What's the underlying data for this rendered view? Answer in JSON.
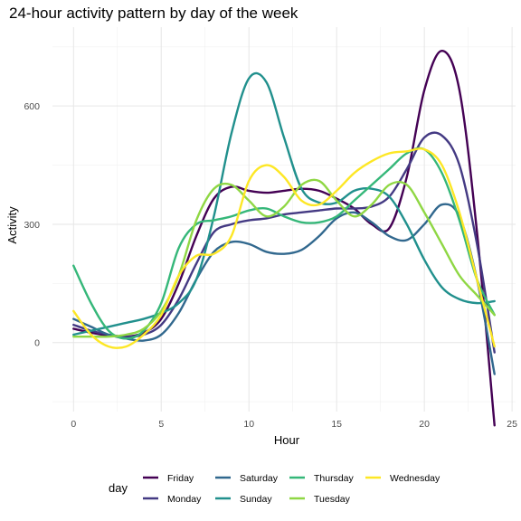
{
  "chart_data": {
    "type": "line",
    "title": "24-hour activity pattern by day of the week",
    "xlabel": "Hour",
    "ylabel": "Activity",
    "xlim": [
      -1.2,
      25.2
    ],
    "ylim": [
      -175,
      800
    ],
    "x_ticks": [
      0,
      5,
      10,
      15,
      20,
      25
    ],
    "x_tick_labels": [
      "0",
      "5",
      "10",
      "15",
      "20",
      "25"
    ],
    "y_ticks": [
      0,
      300,
      600
    ],
    "y_tick_labels": [
      "0",
      "300",
      "600"
    ],
    "grid": true,
    "legend": {
      "title": "day",
      "position": "bottom"
    },
    "x": [
      0,
      1,
      2,
      3,
      4,
      5,
      6,
      7,
      8,
      9,
      10,
      11,
      12,
      13,
      14,
      15,
      16,
      17,
      18,
      19,
      20,
      21,
      22,
      23,
      24
    ],
    "series": [
      {
        "name": "Friday",
        "color": "#440154",
        "values": [
          35,
          25,
          18,
          15,
          25,
          60,
          150,
          270,
          365,
          395,
          385,
          380,
          385,
          390,
          385,
          365,
          340,
          300,
          290,
          420,
          640,
          740,
          640,
          280,
          -210
        ]
      },
      {
        "name": "Monday",
        "color": "#443a83",
        "values": [
          45,
          30,
          20,
          15,
          20,
          45,
          110,
          200,
          280,
          300,
          310,
          315,
          325,
          330,
          335,
          340,
          340,
          345,
          370,
          440,
          520,
          525,
          450,
          250,
          -25
        ]
      },
      {
        "name": "Saturday",
        "color": "#31688e",
        "values": [
          60,
          40,
          20,
          10,
          5,
          20,
          75,
          160,
          230,
          255,
          250,
          230,
          225,
          235,
          270,
          315,
          330,
          305,
          270,
          260,
          300,
          350,
          320,
          160,
          -80
        ]
      },
      {
        "name": "Sunday",
        "color": "#21908d",
        "values": [
          20,
          30,
          40,
          50,
          60,
          75,
          100,
          160,
          320,
          530,
          670,
          660,
          520,
          390,
          355,
          355,
          385,
          390,
          370,
          300,
          210,
          140,
          110,
          100,
          105
        ]
      },
      {
        "name": "Thursday",
        "color": "#35b779",
        "values": [
          195,
          100,
          30,
          10,
          30,
          100,
          240,
          300,
          310,
          320,
          335,
          340,
          320,
          305,
          305,
          320,
          360,
          400,
          440,
          480,
          490,
          430,
          310,
          160,
          70
        ]
      },
      {
        "name": "Tuesday",
        "color": "#8fd744",
        "values": [
          15,
          15,
          15,
          20,
          35,
          80,
          170,
          310,
          390,
          400,
          360,
          320,
          345,
          400,
          410,
          360,
          320,
          350,
          400,
          400,
          330,
          250,
          170,
          120,
          70
        ]
      },
      {
        "name": "Wednesday",
        "color": "#fde725",
        "values": [
          80,
          20,
          -10,
          -10,
          20,
          70,
          170,
          220,
          225,
          270,
          410,
          450,
          420,
          360,
          350,
          385,
          430,
          460,
          480,
          485,
          490,
          450,
          330,
          160,
          -10
        ]
      }
    ]
  }
}
